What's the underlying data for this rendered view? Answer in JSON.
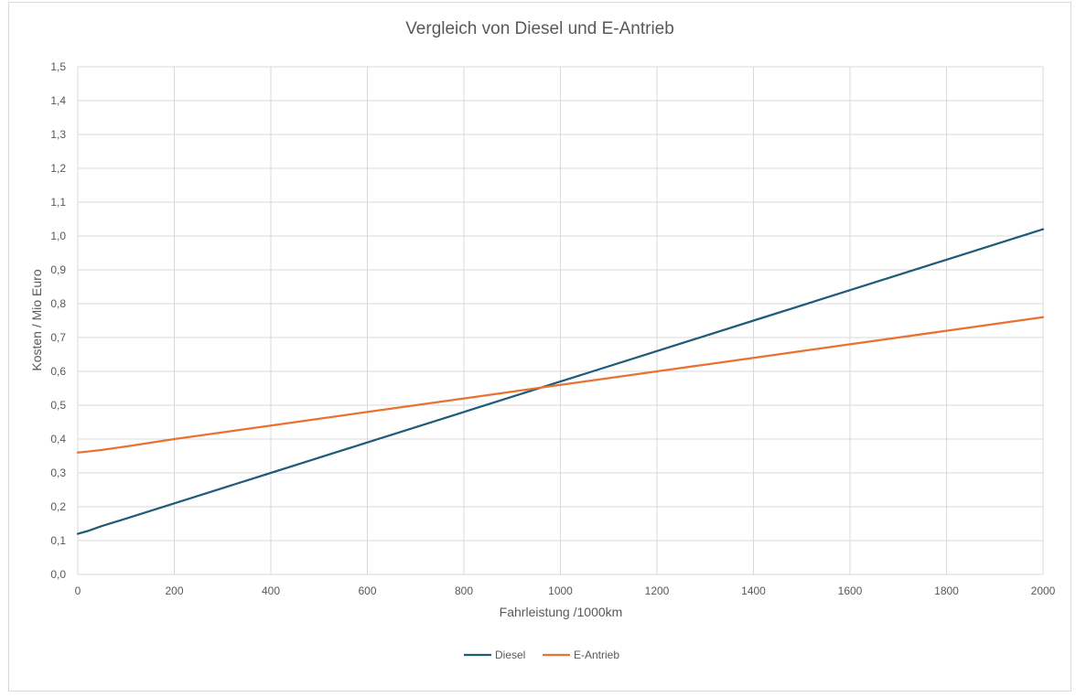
{
  "chart_data": {
    "type": "line",
    "title": "Vergleich von Diesel und E-Antrieb",
    "xlabel": "Fahrleistung /1000km",
    "ylabel": "Kosten / Mio Euro",
    "xlim": [
      0,
      2000
    ],
    "ylim": [
      0,
      1.5
    ],
    "x_ticks": [
      "0",
      "200",
      "400",
      "600",
      "800",
      "1000",
      "1200",
      "1400",
      "1600",
      "1800",
      "2000"
    ],
    "y_ticks": [
      "0,0",
      "0,1",
      "0,2",
      "0,3",
      "0,4",
      "0,5",
      "0,6",
      "0,7",
      "0,8",
      "0,9",
      "1,0",
      "1,1",
      "1,2",
      "1,3",
      "1,4",
      "1,5"
    ],
    "grid": true,
    "legend_position": "bottom",
    "series": [
      {
        "name": "Diesel",
        "color": "#1f5c7a",
        "x": [
          0,
          20,
          50,
          100,
          200,
          400,
          600,
          800,
          1000,
          1200,
          1400,
          1600,
          1800,
          2000
        ],
        "y": [
          0.12,
          0.128,
          0.143,
          0.165,
          0.21,
          0.3,
          0.39,
          0.48,
          0.57,
          0.66,
          0.75,
          0.84,
          0.93,
          1.02
        ]
      },
      {
        "name": "E-Antrieb",
        "color": "#e97132",
        "x": [
          0,
          20,
          50,
          100,
          200,
          400,
          600,
          800,
          1000,
          1200,
          1400,
          1600,
          1800,
          2000
        ],
        "y": [
          0.36,
          0.363,
          0.368,
          0.378,
          0.4,
          0.44,
          0.48,
          0.52,
          0.56,
          0.6,
          0.64,
          0.68,
          0.72,
          0.76
        ]
      }
    ]
  }
}
